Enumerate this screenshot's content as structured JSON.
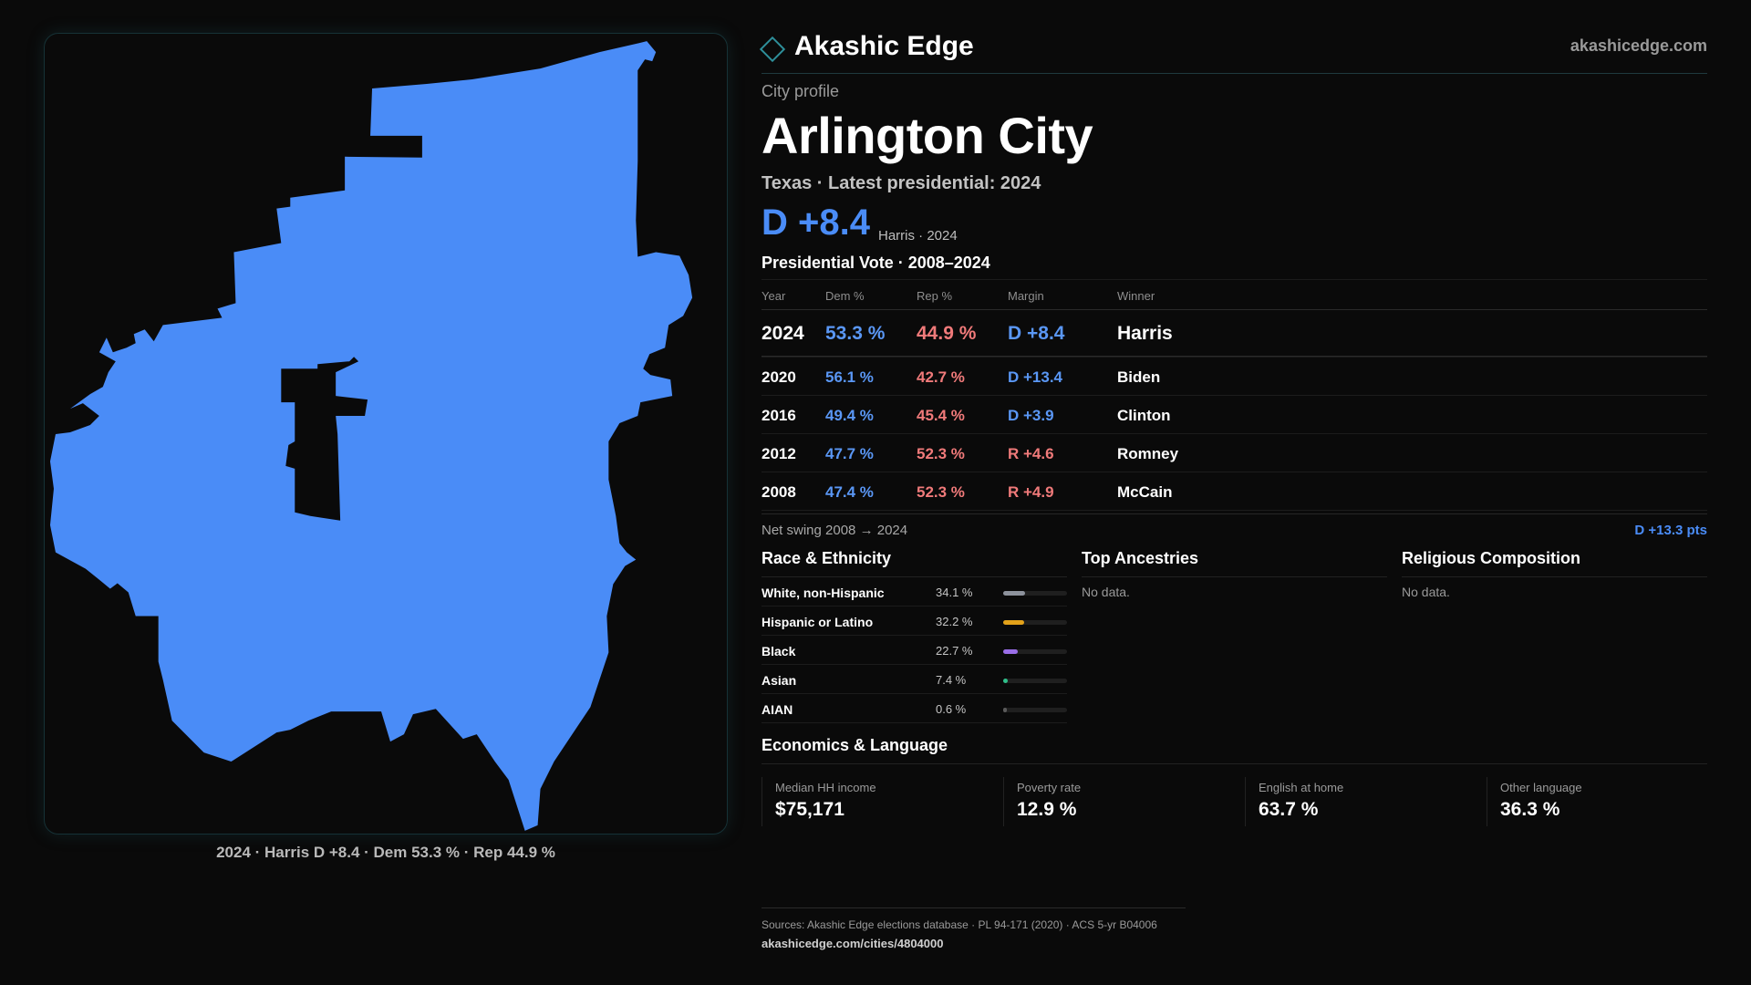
{
  "colors": {
    "dem": "#4a8cf7",
    "rep": "#f07a7a",
    "map_fill": "#4a8cf7",
    "background": "#0a0a0a",
    "accent": "#2e8f9a"
  },
  "brand": {
    "logo_icon": "diamond-icon",
    "name": "Akashic Edge",
    "url": "akashicedge.com"
  },
  "map": {
    "caption": "2024 · Harris D +8.4 · Dem 53.3 % · Rep 44.9 %"
  },
  "profile": {
    "kicker": "City profile",
    "title": "Arlington City",
    "subtitle": "Texas · Latest presidential: 2024",
    "headline_margin": "D +8.4",
    "headline_sub": "Harris · 2024"
  },
  "vote": {
    "title": "Presidential Vote · 2008–2024",
    "headers": {
      "year": "Year",
      "dem": "Dem %",
      "rep": "Rep %",
      "margin": "Margin",
      "winner": "Winner"
    },
    "rows": [
      {
        "year": "2024",
        "dem": "53.3 %",
        "rep": "44.9 %",
        "margin": "D +8.4",
        "party": "d",
        "winner": "Harris"
      },
      {
        "year": "2020",
        "dem": "56.1 %",
        "rep": "42.7 %",
        "margin": "D +13.4",
        "party": "d",
        "winner": "Biden"
      },
      {
        "year": "2016",
        "dem": "49.4 %",
        "rep": "45.4 %",
        "margin": "D +3.9",
        "party": "d",
        "winner": "Clinton"
      },
      {
        "year": "2012",
        "dem": "47.7 %",
        "rep": "52.3 %",
        "margin": "R +4.6",
        "party": "r",
        "winner": "Romney"
      },
      {
        "year": "2008",
        "dem": "47.4 %",
        "rep": "52.3 %",
        "margin": "R +4.9",
        "party": "r",
        "winner": "McCain"
      }
    ],
    "swing_label": "Net swing 2008 → 2024",
    "swing_value": "D +13.3 pts"
  },
  "race": {
    "title": "Race & Ethnicity",
    "rows": [
      {
        "name": "White, non-Hispanic",
        "pct": "34.1 %",
        "value": 34.1,
        "color": "#8d929c"
      },
      {
        "name": "Hispanic or Latino",
        "pct": "32.2 %",
        "value": 32.2,
        "color": "#e3a21a"
      },
      {
        "name": "Black",
        "pct": "22.7 %",
        "value": 22.7,
        "color": "#9a6ee8"
      },
      {
        "name": "Asian",
        "pct": "7.4 %",
        "value": 7.4,
        "color": "#2fbf8a"
      },
      {
        "name": "AIAN",
        "pct": "0.6 %",
        "value": 0.6,
        "color": "#5a5a5a"
      }
    ]
  },
  "ancestries": {
    "title": "Top Ancestries",
    "empty": "No data."
  },
  "religion": {
    "title": "Religious Composition",
    "empty": "No data."
  },
  "economics": {
    "title": "Economics & Language",
    "items": [
      {
        "label": "Median HH income",
        "value": "$75,171"
      },
      {
        "label": "Poverty rate",
        "value": "12.9 %"
      },
      {
        "label": "English at home",
        "value": "63.7 %"
      },
      {
        "label": "Other language",
        "value": "36.3 %"
      }
    ]
  },
  "footer": {
    "sources": "Sources: Akashic Edge elections database · PL 94-171 (2020) · ACS 5-yr B04006",
    "url": "akashicedge.com/cities/4804000"
  }
}
